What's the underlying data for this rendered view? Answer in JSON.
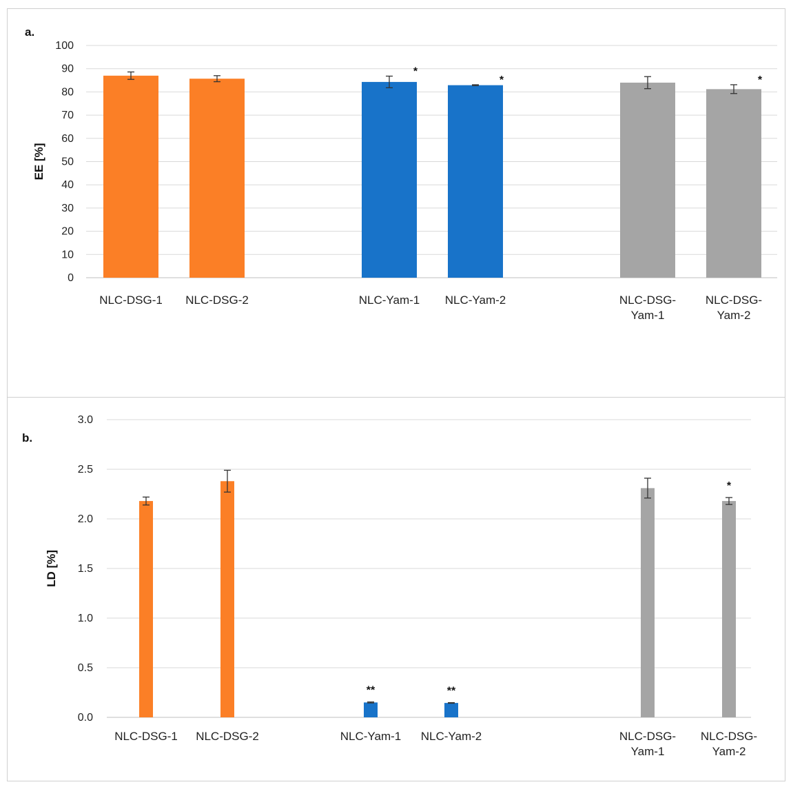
{
  "chart_data": [
    {
      "type": "bar",
      "panel_label": "a.",
      "ylabel": "EE [%]",
      "ylim": [
        0,
        100
      ],
      "yticks": [
        "0",
        "10",
        "20",
        "30",
        "40",
        "50",
        "60",
        "70",
        "80",
        "90",
        "100"
      ],
      "grid": true,
      "categories": [
        [
          "NLC-DSG-1"
        ],
        [
          "NLC-DSG-2"
        ],
        [
          "NLC-Yam-1"
        ],
        [
          "NLC-Yam-2"
        ],
        [
          "NLC-DSG-",
          "Yam-1"
        ],
        [
          "NLC-DSG-",
          "Yam-2"
        ]
      ],
      "values": [
        87,
        85.7,
        84.3,
        82.9,
        84,
        81.2
      ],
      "errors": [
        1.6,
        1.3,
        2.5,
        0.2,
        2.6,
        1.9
      ],
      "colors": [
        "#fb7f26",
        "#fb7f26",
        "#1873c9",
        "#1873c9",
        "#a5a5a5",
        "#a5a5a5"
      ],
      "annotations": [
        "",
        "",
        "*",
        "*",
        "",
        "*"
      ]
    },
    {
      "type": "bar",
      "panel_label": "b.",
      "ylabel": "LD [%]",
      "ylim": [
        0,
        3
      ],
      "yticks": [
        "0.0",
        "0.5",
        "1.0",
        "1.5",
        "2.0",
        "2.5",
        "3.0"
      ],
      "grid": true,
      "categories": [
        [
          "NLC-DSG-1"
        ],
        [
          "NLC-DSG-2"
        ],
        [
          "NLC-Yam-1"
        ],
        [
          "NLC-Yam-2"
        ],
        [
          "NLC-DSG-",
          "Yam-1"
        ],
        [
          "NLC-DSG-",
          "Yam-2"
        ]
      ],
      "values": [
        2.18,
        2.38,
        0.15,
        0.145,
        2.31,
        2.18
      ],
      "errors": [
        0.04,
        0.11,
        0.005,
        0.003,
        0.1,
        0.035
      ],
      "colors": [
        "#fb7f26",
        "#fb7f26",
        "#1873c9",
        "#1873c9",
        "#a5a5a5",
        "#a5a5a5"
      ],
      "annotations": [
        "",
        "",
        "**",
        "**",
        "",
        "*"
      ]
    }
  ]
}
